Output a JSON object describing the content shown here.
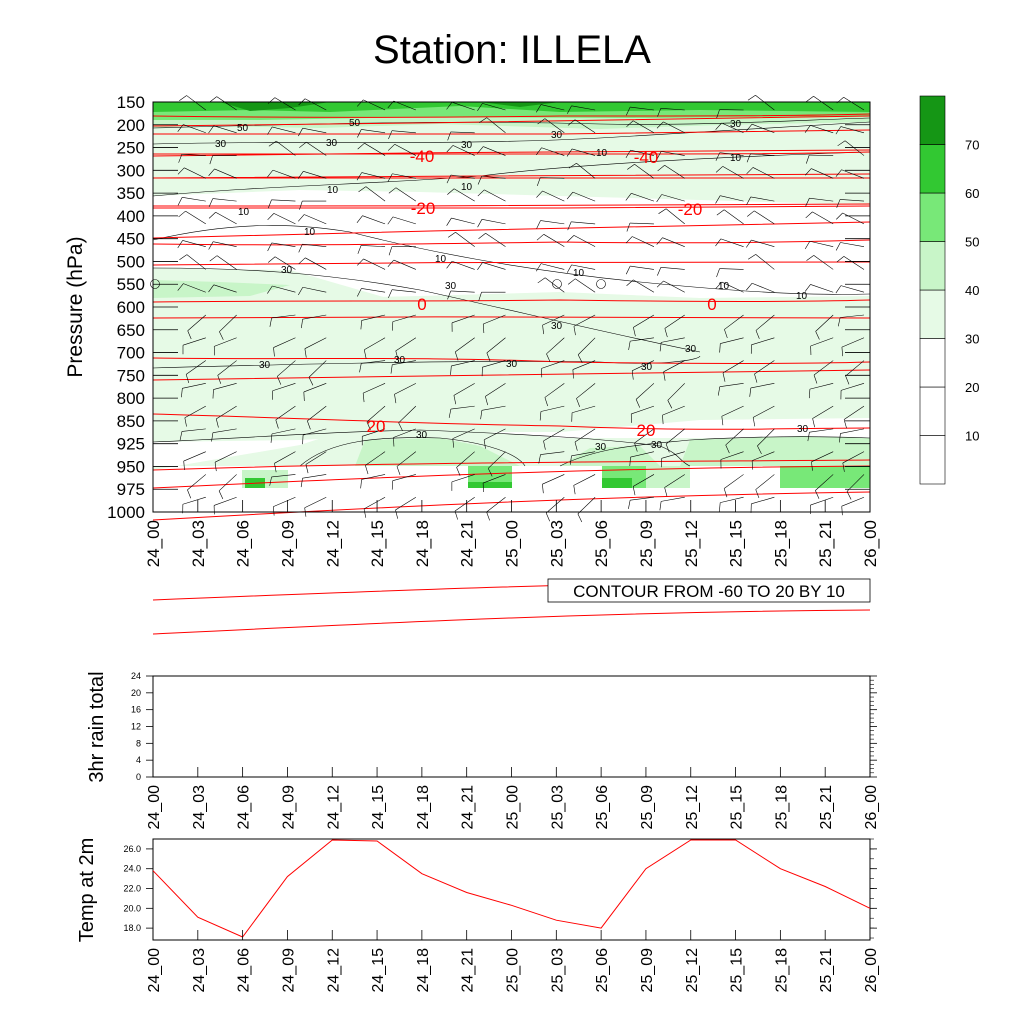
{
  "title": "Station: ILLELA",
  "chart_data": [
    {
      "type": "heatmap",
      "ylabel": "Pressure (hPa)",
      "y_ticks": [
        150,
        200,
        250,
        300,
        350,
        400,
        450,
        500,
        550,
        600,
        650,
        700,
        750,
        800,
        850,
        925,
        950,
        975,
        1000
      ],
      "x_ticks": [
        "24_00",
        "24_03",
        "24_06",
        "24_09",
        "24_12",
        "24_15",
        "24_18",
        "24_21",
        "25_00",
        "25_03",
        "25_06",
        "25_09",
        "25_12",
        "25_15",
        "25_18",
        "25_21",
        "26_00"
      ],
      "colorbar": {
        "levels": [
          10,
          20,
          30,
          40,
          50,
          60,
          70
        ],
        "colors": [
          "#ffffff",
          "#ffffff",
          "#e6fae6",
          "#c8f5c8",
          "#78e878",
          "#32c832",
          "#159615"
        ]
      },
      "shaded_field_contour_labels": [
        10,
        30,
        50
      ],
      "temperature_contours": {
        "color": "#ff0000",
        "labels": [
          "-40",
          "-40",
          "-20",
          "-20",
          "0",
          "0",
          "20",
          "20"
        ],
        "info": "CONTOUR FROM -60 TO 20 BY 10"
      },
      "wind_barbs": true
    },
    {
      "type": "line",
      "ylabel": "3hr rain total",
      "ylim": [
        0,
        24
      ],
      "y_ticks": [
        0,
        4,
        8,
        12,
        16,
        20,
        24
      ],
      "x_ticks": [
        "24_00",
        "24_03",
        "24_06",
        "24_09",
        "24_12",
        "24_15",
        "24_18",
        "24_21",
        "25_00",
        "25_03",
        "25_06",
        "25_09",
        "25_12",
        "25_15",
        "25_18",
        "25_21",
        "26_00"
      ],
      "values": []
    },
    {
      "type": "line",
      "ylabel": "Temp at 2m",
      "ylim": [
        16.8,
        27.0
      ],
      "y_ticks": [
        "18.0",
        "20.0",
        "22.0",
        "24.0",
        "26.0"
      ],
      "x_ticks": [
        "24_00",
        "24_03",
        "24_06",
        "24_09",
        "24_12",
        "24_15",
        "24_18",
        "24_21",
        "25_00",
        "25_03",
        "25_06",
        "25_09",
        "25_12",
        "25_15",
        "25_18",
        "25_21",
        "26_00"
      ],
      "values": [
        23.8,
        19.1,
        17.1,
        23.2,
        26.9,
        26.8,
        23.5,
        21.6,
        20.3,
        18.8,
        18.0,
        24.0,
        26.9,
        26.9,
        24.0,
        22.2,
        20.0
      ],
      "color": "#ff0000"
    }
  ]
}
